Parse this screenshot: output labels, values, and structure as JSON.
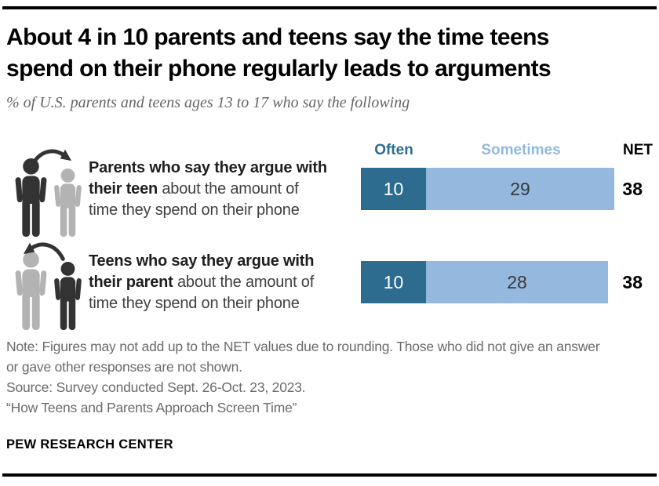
{
  "chart_data": {
    "type": "bar",
    "orientation": "horizontal",
    "stacked": true,
    "title": "About 4 in 10 parents and teens say the time teens spend on their phone regularly leads to arguments",
    "subtitle": "% of U.S. parents and teens ages 13 to 17 who say the following",
    "categories": [
      "Parents who say they argue with their teen about the amount of time they spend on their phone",
      "Teens who say they argue with their parent about the amount of time they spend on their phone"
    ],
    "series": [
      {
        "name": "Often",
        "color": "#2D6C8F",
        "values": [
          10,
          10
        ]
      },
      {
        "name": "Sometimes",
        "color": "#94B8DE",
        "values": [
          29,
          28
        ]
      }
    ],
    "net": {
      "label": "NET",
      "values": [
        38,
        38
      ]
    },
    "xlim": [
      0,
      40
    ],
    "legend_position": "top",
    "grid": false,
    "value_labels": true
  },
  "rows": [
    {
      "line1_bold": "Parents who say they argue with",
      "line2_bold": "their teen",
      "line2_rest": " about the amount of",
      "line3": "time they spend on their phone",
      "icon": "parent-pointing-at-teen"
    },
    {
      "line1_bold": "Teens who say they argue with",
      "line2_bold": "their parent",
      "line2_rest": " about the amount of",
      "line3": "time they spend on their phone",
      "icon": "teen-pointing-at-parent"
    }
  ],
  "colors": {
    "often": "#2D6C8F",
    "sometimes": "#94B8DE",
    "dark_person": "#333333",
    "gray_person": "#B3B3B3",
    "arrow": "#333333"
  },
  "footer": {
    "note": "Note: Figures may not add up to the NET values due to rounding. Those who did not give an answer or gave other responses are not shown.",
    "source": "Source: Survey conducted Sept. 26-Oct. 23, 2023.",
    "report": "“How Teens and Parents Approach Screen Time”",
    "brand": "PEW RESEARCH CENTER"
  }
}
